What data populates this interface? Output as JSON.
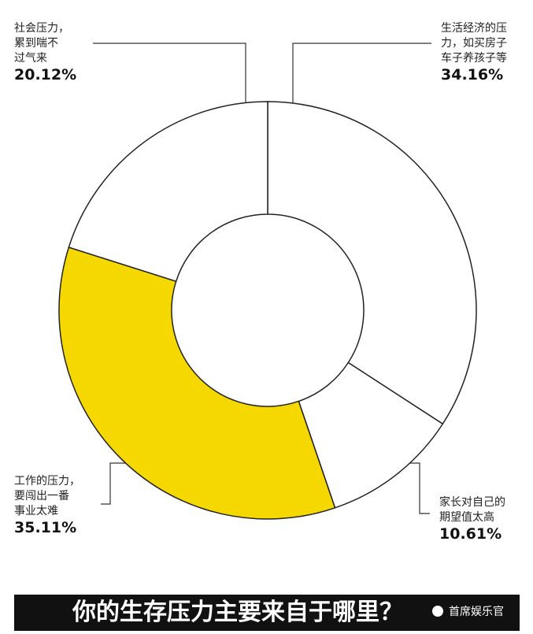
{
  "chart_data": {
    "type": "donut",
    "title": "你的生存压力主要来自于哪里？",
    "watermark": "首席娱乐官",
    "categories": [
      [
        "生活经济的压",
        "力，如买房子",
        "车子养孩子等"
      ],
      [
        "家长对自己的",
        "期望值太高"
      ],
      [
        "工作的压力，",
        "要闯出一番",
        "事业太难"
      ],
      [
        "社会压力，",
        "累到喘不",
        "过气来"
      ]
    ],
    "values": [
      34.16,
      10.61,
      35.11,
      20.12
    ],
    "value_labels": [
      "34.16%",
      "10.61%",
      "35.11%",
      "20.12%"
    ],
    "colors": [
      "#ffffff",
      "#ffffff",
      "#f5d800",
      "#ffffff"
    ]
  }
}
